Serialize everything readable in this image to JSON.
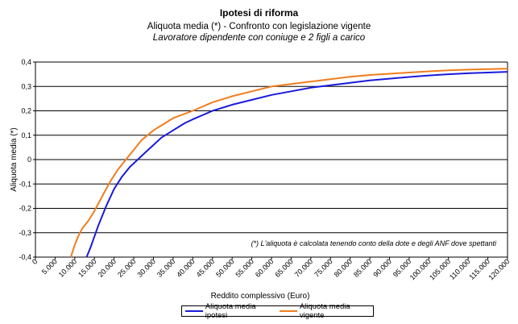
{
  "chart_data": {
    "type": "line",
    "title": "Ipotesi di riforma",
    "subtitle": "Aliquota media (*) - Confronto con legislazione vigente",
    "subtitle2": "Lavoratore dipendente con coniuge e 2 figli a carico",
    "xlabel": "Reddito complessivo (Euro)",
    "ylabel": "Aliquota media (*)",
    "note": "(*) L'aliquota è calcolata tenendo conto della dote e degli ANF dove spettanti",
    "xlim": [
      0,
      120000
    ],
    "ylim": [
      -0.4,
      0.4
    ],
    "x_ticks": [
      0,
      5000,
      10000,
      15000,
      20000,
      25000,
      30000,
      35000,
      40000,
      45000,
      50000,
      55000,
      60000,
      65000,
      70000,
      75000,
      80000,
      85000,
      90000,
      95000,
      100000,
      105000,
      110000,
      115000,
      120000
    ],
    "x_tick_labels": [
      "0",
      "5.000",
      "10.000",
      "15.000",
      "20.000",
      "25.000",
      "30.000",
      "35.000",
      "40.000",
      "45.000",
      "50.000",
      "55.000",
      "60.000",
      "65.000",
      "70.000",
      "75.000",
      "80.000",
      "85.000",
      "90.000",
      "95.000",
      "100.000",
      "105.000",
      "110.000",
      "115.000",
      "120.000"
    ],
    "y_ticks": [
      0.4,
      0.3,
      0.2,
      0.1,
      0,
      -0.1,
      -0.2,
      -0.3,
      -0.4
    ],
    "y_tick_labels": [
      "0,4",
      "0,3",
      "0,2",
      "0,1",
      "0",
      "-0,1",
      "-0,2",
      "-0,3",
      "-0,4"
    ],
    "grid": "horizontal",
    "legend_position": "bottom",
    "series": [
      {
        "name": "Aliquota media ipotesi",
        "color": "#1a1adb",
        "x": [
          13000,
          14000,
          16000,
          18000,
          20000,
          22000,
          24000,
          26000,
          28000,
          30000,
          32000,
          35000,
          38000,
          40000,
          45000,
          50000,
          55000,
          60000,
          65000,
          70000,
          75000,
          80000,
          85000,
          90000,
          95000,
          100000,
          105000,
          110000,
          115000,
          120000
        ],
        "y": [
          -0.4,
          -0.36,
          -0.27,
          -0.19,
          -0.12,
          -0.07,
          -0.03,
          0.0,
          0.03,
          0.06,
          0.09,
          0.12,
          0.15,
          0.165,
          0.2,
          0.225,
          0.245,
          0.265,
          0.28,
          0.295,
          0.305,
          0.315,
          0.325,
          0.332,
          0.339,
          0.345,
          0.35,
          0.354,
          0.357,
          0.36
        ]
      },
      {
        "name": "Aliquota media vigente",
        "color": "#f07d1e",
        "x": [
          9000,
          10000,
          11000,
          12000,
          13500,
          15000,
          17000,
          19000,
          21000,
          23000,
          25000,
          27000,
          30000,
          33000,
          35000,
          40000,
          45000,
          50000,
          55000,
          60000,
          65000,
          70000,
          75000,
          80000,
          85000,
          90000,
          95000,
          100000,
          105000,
          110000,
          115000,
          120000
        ],
        "y": [
          -0.4,
          -0.35,
          -0.31,
          -0.28,
          -0.25,
          -0.21,
          -0.15,
          -0.09,
          -0.04,
          0.0,
          0.04,
          0.08,
          0.12,
          0.15,
          0.17,
          0.2,
          0.235,
          0.26,
          0.28,
          0.3,
          0.31,
          0.32,
          0.33,
          0.34,
          0.347,
          0.352,
          0.357,
          0.362,
          0.366,
          0.369,
          0.371,
          0.373
        ]
      }
    ]
  }
}
